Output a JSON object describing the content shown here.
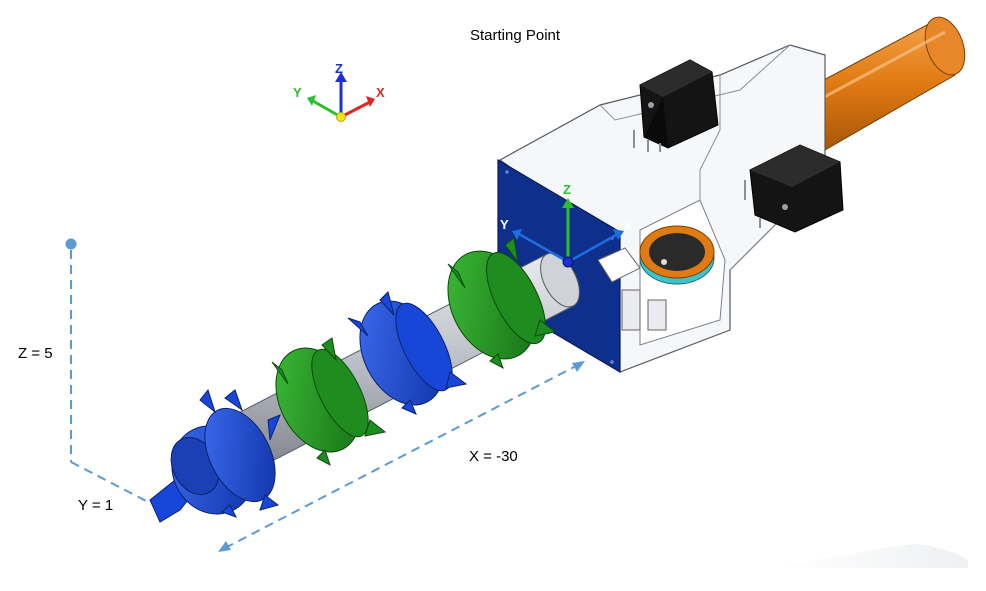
{
  "caption": {
    "title": "Starting Point",
    "z_offset": "Z = 5",
    "x_offset": "X = -30",
    "y_offset": "Y = 1"
  },
  "triad_global": {
    "x": "X",
    "y": "Y",
    "z": "Z"
  },
  "triad_local": {
    "x": "X",
    "y": "Y",
    "z": "Z"
  },
  "colors": {
    "blue_part": "#1846d8",
    "green_part": "#1f8c1f",
    "grey_shaft": "#b9bec6",
    "orange_tube": "#e07a12",
    "dark_box": "#0e2f8c",
    "servo_black": "#141414",
    "dashed_line": "#5b9bd5",
    "axis_x": "#e0281e",
    "axis_y": "#2bbf2b",
    "axis_z": "#1c2fd6"
  }
}
